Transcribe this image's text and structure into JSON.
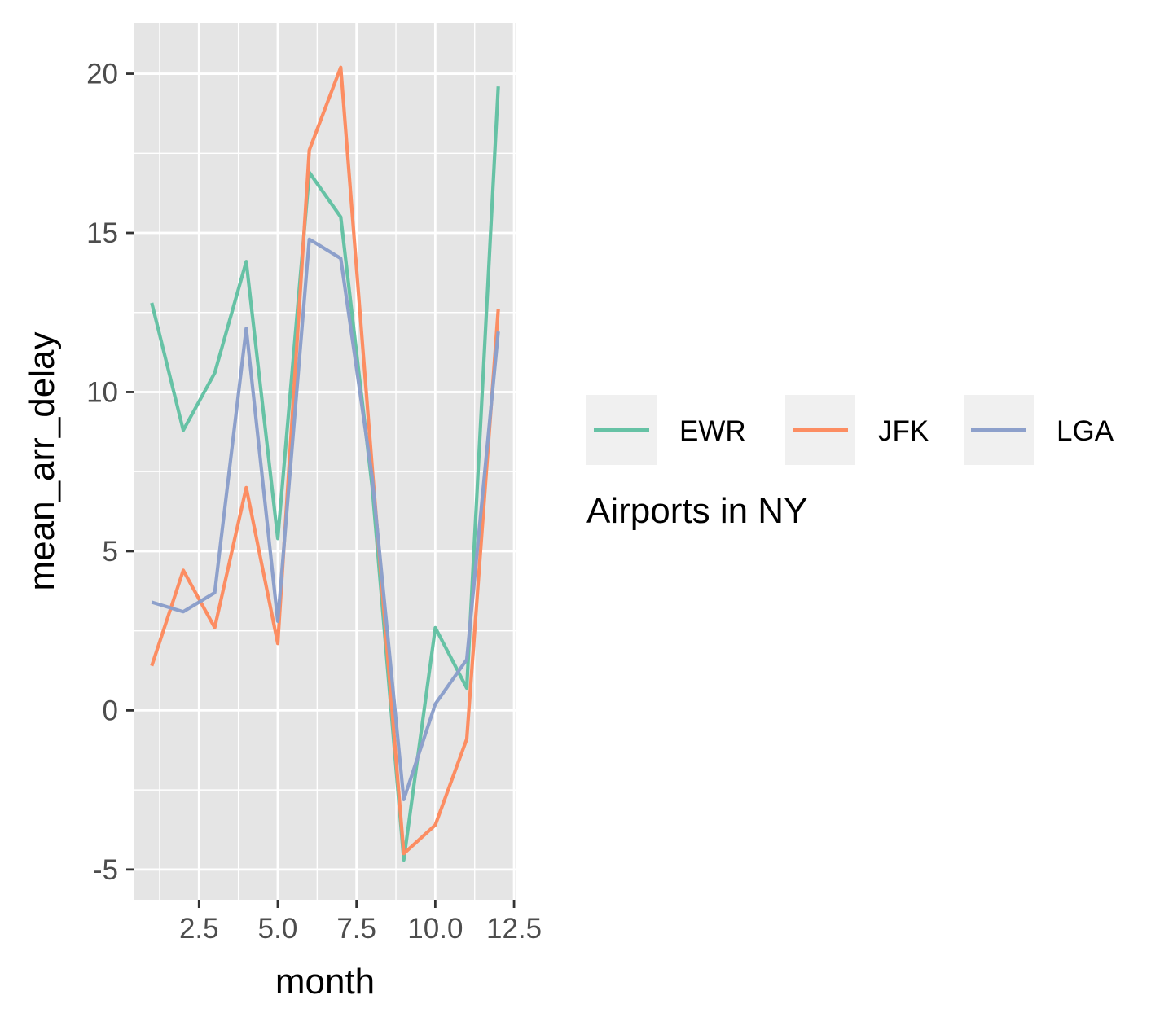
{
  "chart_data": {
    "type": "line",
    "xlabel": "month",
    "ylabel": "mean_arr_delay",
    "x": [
      1,
      2,
      3,
      4,
      5,
      6,
      7,
      8,
      9,
      10,
      11,
      12
    ],
    "xlim": [
      0.45,
      12.55
    ],
    "ylim": [
      -5.95,
      21.6
    ],
    "x_ticks": [
      {
        "value": 2.5,
        "label": "2.5"
      },
      {
        "value": 5.0,
        "label": "5.0"
      },
      {
        "value": 7.5,
        "label": "7.5"
      },
      {
        "value": 10.0,
        "label": "10.0"
      },
      {
        "value": 12.5,
        "label": "12.5"
      }
    ],
    "y_ticks": [
      {
        "value": -5,
        "label": "-5"
      },
      {
        "value": 0,
        "label": "0"
      },
      {
        "value": 5,
        "label": "5"
      },
      {
        "value": 10,
        "label": "10"
      },
      {
        "value": 15,
        "label": "15"
      },
      {
        "value": 20,
        "label": "20"
      }
    ],
    "grid": true,
    "legend": {
      "title": "Airports in NY",
      "position": "right",
      "direction": "horizontal"
    },
    "series": [
      {
        "name": "EWR",
        "color": "#66c2a5",
        "values": [
          12.8,
          8.8,
          10.6,
          14.1,
          5.4,
          16.9,
          15.5,
          7.0,
          -4.7,
          2.6,
          0.7,
          19.6
        ]
      },
      {
        "name": "JFK",
        "color": "#fc8d62",
        "values": [
          1.4,
          4.4,
          2.6,
          7.0,
          2.1,
          17.6,
          20.2,
          7.6,
          -4.5,
          -3.6,
          -0.9,
          12.6
        ]
      },
      {
        "name": "LGA",
        "color": "#8da0cb",
        "values": [
          3.4,
          3.1,
          3.7,
          12.0,
          2.8,
          14.8,
          14.2,
          7.3,
          -2.8,
          0.2,
          1.6,
          11.9
        ]
      }
    ]
  }
}
